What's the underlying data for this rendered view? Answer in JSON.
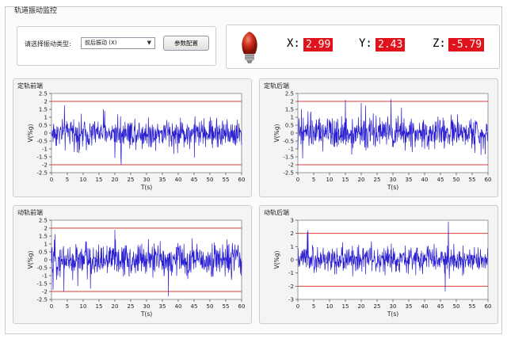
{
  "group_title": "轨道振动监控",
  "controls": {
    "type_label": "请选择振动类型:",
    "type_selected": "前后振动 (X)",
    "config_button": "参数配置"
  },
  "readout": {
    "x_label": "X:",
    "x_value": "2.99",
    "y_label": "Y:",
    "y_value": "2.43",
    "z_label": "Z:",
    "z_value": "-5.79"
  },
  "colors": {
    "signal": "#2a1fd0",
    "limit": "#e53935",
    "readout_bg": "#e0131c",
    "bulb": "#c8281c"
  },
  "charts": [
    {
      "title": "定轨前端",
      "ylabel": "V(%g)",
      "xlabel": "T(s)",
      "yticks": [
        "2.5",
        "2",
        "1.5",
        "1",
        "0.5",
        "0",
        "-0.5",
        "-1",
        "-1.5",
        "-2",
        "-2.5"
      ],
      "xticks": [
        "0",
        "5",
        "10",
        "15",
        "20",
        "25",
        "30",
        "35",
        "40",
        "45",
        "50",
        "55",
        "60"
      ]
    },
    {
      "title": "定轨后端",
      "ylabel": "V(%g)",
      "xlabel": "T(s)",
      "yticks": [
        "2.5",
        "2",
        "1.5",
        "1",
        "0.5",
        "0",
        "-0.5",
        "-1",
        "-1.5",
        "-2",
        "-2.5"
      ],
      "xticks": [
        "0",
        "5",
        "10",
        "15",
        "20",
        "25",
        "30",
        "35",
        "40",
        "45",
        "50",
        "55",
        "60"
      ]
    },
    {
      "title": "动轨前端",
      "ylabel": "V(%g)",
      "xlabel": "T(s)",
      "yticks": [
        "2.5",
        "2",
        "1.5",
        "1",
        "0.5",
        "0",
        "-0.5",
        "-1",
        "-1.5",
        "-2",
        "-2.5"
      ],
      "xticks": [
        "0",
        "5",
        "10",
        "15",
        "20",
        "25",
        "30",
        "35",
        "40",
        "45",
        "50",
        "55",
        "60"
      ]
    },
    {
      "title": "动轨后端",
      "ylabel": "V(%g)",
      "xlabel": "T(s)",
      "yticks": [
        "3",
        "2",
        "1",
        "0",
        "-1",
        "-2",
        "-3"
      ],
      "xticks": [
        "0",
        "5",
        "10",
        "15",
        "20",
        "25",
        "30",
        "35",
        "40",
        "45",
        "50",
        "55",
        "60"
      ]
    }
  ],
  "chart_data": [
    {
      "type": "line",
      "xlim": [
        0,
        60
      ],
      "ylim": [
        -2.5,
        2.5
      ],
      "limits": [
        2,
        -2
      ],
      "spikes": [
        [
          22,
          -2.0
        ]
      ],
      "amplitude": 0.75
    },
    {
      "type": "line",
      "xlim": [
        0,
        60
      ],
      "ylim": [
        -2.5,
        2.5
      ],
      "limits": [
        2,
        -2
      ],
      "spikes": [
        [
          15,
          2.1
        ],
        [
          20,
          1.9
        ],
        [
          1.5,
          -1.6
        ]
      ],
      "amplitude": 0.8
    },
    {
      "type": "line",
      "xlim": [
        0,
        60
      ],
      "ylim": [
        -2.5,
        2.5
      ],
      "limits": [
        2,
        -2
      ],
      "spikes": [
        [
          20,
          1.9
        ],
        [
          0.5,
          -1.9
        ]
      ],
      "amplitude": 0.85
    },
    {
      "type": "line",
      "xlim": [
        0,
        60
      ],
      "ylim": [
        -3,
        3
      ],
      "limits": [
        2,
        -2
      ],
      "spikes": [
        [
          47.5,
          2.9
        ],
        [
          46.5,
          -2.4
        ],
        [
          3,
          2.1
        ]
      ],
      "amplitude": 0.8
    }
  ]
}
